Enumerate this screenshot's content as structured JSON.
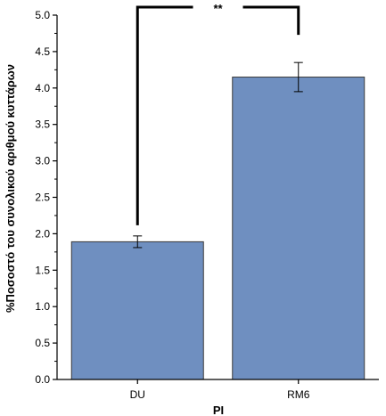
{
  "chart_data": {
    "type": "bar",
    "categories": [
      "DU",
      "RM6"
    ],
    "values": [
      1.89,
      4.15
    ],
    "errors": [
      0.08,
      0.2
    ],
    "xlabel": "PI",
    "ylabel": "%Ποσοστό του συνολικού αριθμού κυττάρων",
    "ylim": [
      0,
      5
    ],
    "yticks": [
      "0.0",
      "0.5",
      "1.0",
      "1.5",
      "2.0",
      "2.5",
      "3.0",
      "3.5",
      "4.0",
      "4.5",
      "5.0"
    ],
    "bar_color": "#6f8fc0",
    "bar_edge_color": "#3a3a3a",
    "grid": false,
    "significance": {
      "label": "**",
      "between": [
        "DU",
        "RM6"
      ]
    }
  }
}
